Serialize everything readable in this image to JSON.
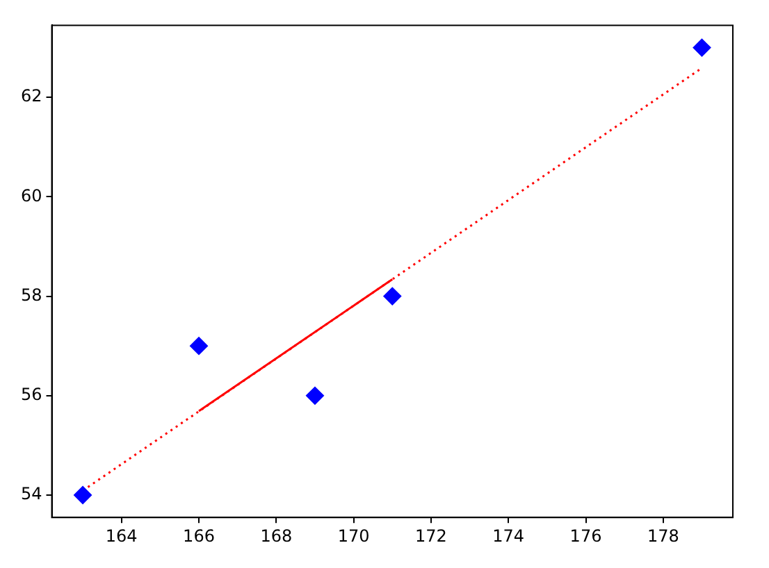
{
  "chart_data": {
    "type": "scatter",
    "xlim": [
      162.2,
      179.8
    ],
    "ylim": [
      53.55,
      63.45
    ],
    "xticks": [
      164,
      166,
      168,
      170,
      172,
      174,
      176,
      178
    ],
    "yticks": [
      54,
      56,
      58,
      60,
      62
    ],
    "grid": false,
    "legend": false,
    "series": [
      {
        "type": "scatter",
        "color": "#0000ff",
        "marker": "diamond",
        "x": [
          163,
          166,
          169,
          171,
          179
        ],
        "values": [
          54,
          57,
          56,
          58,
          63
        ]
      },
      {
        "type": "line",
        "color": "#ff0000",
        "line_style": "dotted",
        "marker": "none",
        "x": [
          163,
          179
        ],
        "values": [
          54.09,
          62.59
        ]
      },
      {
        "type": "line",
        "color": "#ff0000",
        "line_style": "solid",
        "marker": "none",
        "x": [
          166,
          171
        ],
        "values": [
          55.69,
          58.34
        ]
      }
    ]
  }
}
